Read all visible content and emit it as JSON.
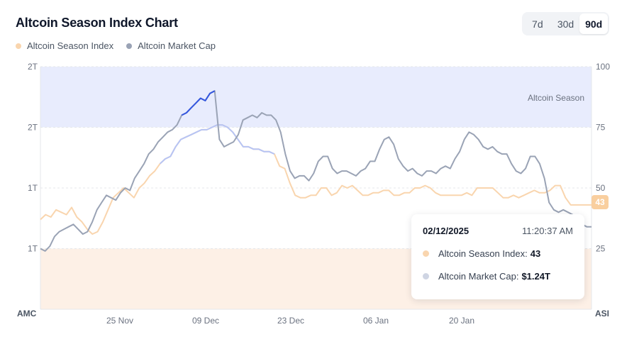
{
  "header": {
    "title": "Altcoin Season Index Chart"
  },
  "range_buttons": [
    {
      "label": "7d",
      "active": false
    },
    {
      "label": "30d",
      "active": false
    },
    {
      "label": "90d",
      "active": true
    }
  ],
  "legend": [
    {
      "label": "Altcoin Season Index",
      "color": "#f9d5ae"
    },
    {
      "label": "Altcoin Market Cap",
      "color": "#9aa3b5"
    }
  ],
  "tooltip": {
    "date": "02/12/2025",
    "time": "11:20:37 AM",
    "index_label": "Altcoin Season Index:",
    "index_value": "43",
    "cap_label": "Altcoin Market Cap:",
    "cap_value": "$1.24T"
  },
  "current_badge": "43",
  "colors": {
    "season_band": "#e8ecfd",
    "bitcoin_band": "#fdf0e6",
    "index_line": "#f9d5ae",
    "index_line_highlight": "#b6c4f5",
    "cap_line": "#9aa3b5",
    "cap_line_highlight": "#3457e0"
  },
  "chart_data": {
    "type": "line",
    "title": "Altcoin Season Index Chart",
    "x_ticks": [
      "25 Nov",
      "09 Dec",
      "23 Dec",
      "06 Jan",
      "20 Jan"
    ],
    "left_axis": {
      "label": "AMC",
      "tick_labels": [
        "1T",
        "1T",
        "2T",
        "2T"
      ]
    },
    "right_axis": {
      "label": "ASI",
      "tick_labels": [
        "25",
        "50",
        "75",
        "100"
      ],
      "ylim": [
        0,
        100
      ]
    },
    "bands": [
      {
        "label": "Altcoin Season",
        "from": 75,
        "to": 100
      },
      {
        "label": "",
        "from": 0,
        "to": 25
      }
    ],
    "series": [
      {
        "name": "Altcoin Season Index",
        "axis": "right",
        "values": [
          37,
          39,
          38,
          41,
          40,
          39,
          42,
          38,
          36,
          33,
          31,
          32,
          36,
          41,
          46,
          48,
          50,
          48,
          46,
          50,
          52,
          55,
          57,
          60,
          62,
          63,
          67,
          70,
          71,
          72,
          73,
          74,
          74,
          75,
          76,
          76,
          75,
          73,
          70,
          67,
          67,
          66,
          66,
          65,
          65,
          64,
          59,
          58,
          52,
          47,
          46,
          46,
          47,
          47,
          50,
          50,
          47,
          48,
          51,
          50,
          51,
          49,
          47,
          47,
          48,
          48,
          49,
          49,
          47,
          47,
          48,
          48,
          50,
          50,
          51,
          50,
          48,
          47,
          47,
          47,
          47,
          47,
          48,
          47,
          50,
          50,
          50,
          50,
          48,
          46,
          46,
          47,
          46,
          47,
          48,
          49,
          48,
          48,
          49,
          51,
          51,
          46,
          43,
          43,
          43,
          43,
          43
        ]
      },
      {
        "name": "Altcoin Market Cap",
        "axis": "right",
        "values": [
          25,
          24,
          26,
          30,
          32,
          33,
          34,
          35,
          33,
          31,
          32,
          36,
          41,
          44,
          47,
          46,
          45,
          48,
          50,
          49,
          54,
          57,
          60,
          64,
          66,
          69,
          71,
          73,
          74,
          76,
          80,
          81,
          83,
          85,
          87,
          86,
          89,
          90,
          70,
          67,
          68,
          69,
          72,
          78,
          79,
          80,
          79,
          81,
          80,
          80,
          78,
          73,
          64,
          57,
          54,
          55,
          55,
          53,
          56,
          61,
          63,
          63,
          58,
          56,
          57,
          57,
          56,
          55,
          57,
          58,
          61,
          61,
          66,
          70,
          71,
          68,
          62,
          59,
          57,
          58,
          56,
          55,
          57,
          57,
          56,
          58,
          59,
          58,
          62,
          65,
          70,
          73,
          72,
          70,
          67,
          66,
          67,
          65,
          64,
          64,
          60,
          57,
          56,
          58,
          63,
          63,
          60,
          54,
          44,
          41,
          40,
          41,
          40,
          39,
          37,
          35,
          34,
          34
        ]
      }
    ]
  }
}
